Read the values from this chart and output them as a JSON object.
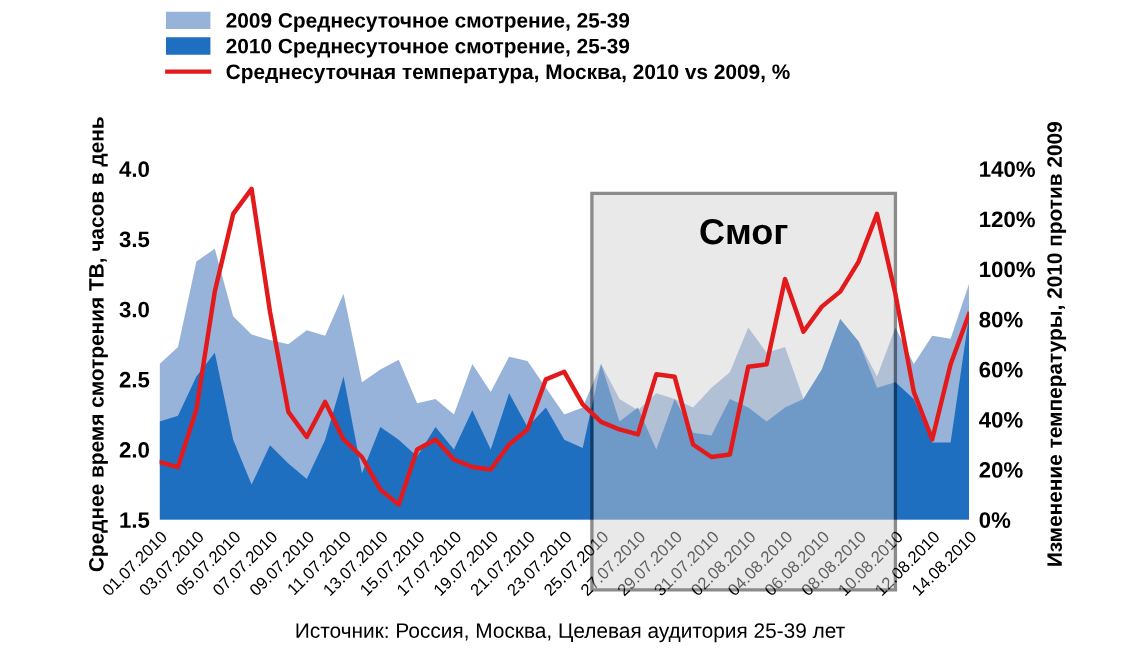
{
  "chart_data": {
    "type": "area",
    "ylabel": "Среднее время смотрения ТВ, часов в день",
    "y2label": "Изменение температуры, 2010 против 2009",
    "annotations": [
      "Источник: Россия, Москва, Целевая аудитория 25-39 лет"
    ],
    "x": [
      "2010-07-01",
      "2010-07-02",
      "2010-07-03",
      "2010-07-04",
      "2010-07-05",
      "2010-07-06",
      "2010-07-07",
      "2010-07-08",
      "2010-07-09",
      "2010-07-10",
      "2010-07-11",
      "2010-07-12",
      "2010-07-13",
      "2010-07-14",
      "2010-07-15",
      "2010-07-16",
      "2010-07-17",
      "2010-07-18",
      "2010-07-19",
      "2010-07-20",
      "2010-07-21",
      "2010-07-22",
      "2010-07-23",
      "2010-07-24",
      "2010-07-25",
      "2010-07-26",
      "2010-07-27",
      "2010-07-28",
      "2010-07-29",
      "2010-07-30",
      "2010-07-31",
      "2010-08-01",
      "2010-08-02",
      "2010-08-03",
      "2010-08-04",
      "2010-08-05",
      "2010-08-06",
      "2010-08-07",
      "2010-08-08",
      "2010-08-09",
      "2010-08-10",
      "2010-08-11",
      "2010-08-12",
      "2010-08-13",
      "2010-08-14"
    ],
    "series": [
      {
        "name": "2009 Среднесуточное смотрение, 25-39",
        "color": "#98b3d9",
        "values": [
          2.61,
          2.73,
          3.34,
          3.43,
          2.95,
          2.82,
          2.78,
          2.75,
          2.85,
          2.81,
          3.11,
          2.48,
          2.57,
          2.64,
          2.33,
          2.36,
          2.25,
          2.61,
          2.41,
          2.66,
          2.63,
          2.44,
          2.25,
          2.3,
          2.61,
          2.36,
          2.28,
          2.4,
          2.36,
          2.3,
          2.44,
          2.55,
          2.87,
          2.69,
          2.73,
          2.36,
          2.57,
          2.93,
          2.77,
          2.52,
          2.87,
          2.61,
          2.81,
          2.79,
          3.18
        ]
      },
      {
        "name": "2010 Среднесуточное смотрение, 25-39",
        "color": "#1f6fc0",
        "values": [
          2.2,
          2.24,
          2.52,
          2.69,
          2.07,
          1.75,
          2.03,
          1.9,
          1.79,
          2.07,
          2.52,
          1.83,
          2.16,
          2.07,
          1.95,
          2.16,
          2.0,
          2.28,
          2.0,
          2.4,
          2.16,
          2.3,
          2.07,
          2.01,
          2.61,
          2.2,
          2.3,
          2.0,
          2.36,
          2.12,
          2.1,
          2.36,
          2.3,
          2.2,
          2.3,
          2.36,
          2.57,
          2.93,
          2.77,
          2.44,
          2.48,
          2.36,
          2.05,
          2.05,
          2.95
        ]
      },
      {
        "name": "Среднесуточная температура, Москва, 2010 vs 2009, %",
        "type": "line",
        "axis": "y2",
        "color": "#e31a1c",
        "values": [
          23,
          21,
          44,
          91,
          122,
          132,
          83,
          43,
          33,
          47,
          32,
          25,
          12,
          6,
          28,
          32,
          24,
          21,
          20,
          30,
          36,
          56,
          59,
          46,
          39,
          36,
          34,
          58,
          57,
          30,
          25,
          26,
          61,
          62,
          96,
          75,
          85,
          91,
          103,
          122,
          90,
          51,
          32,
          62,
          82
        ]
      }
    ],
    "xlim": [
      "2010-07-01",
      "2010-08-14"
    ],
    "xticks": [
      {
        "value": "2010-07-01",
        "label": "01.07.2010"
      },
      {
        "value": "2010-07-03",
        "label": "03.07.2010"
      },
      {
        "value": "2010-07-05",
        "label": "05.07.2010"
      },
      {
        "value": "2010-07-07",
        "label": "07.07.2010"
      },
      {
        "value": "2010-07-09",
        "label": "09.07.2010"
      },
      {
        "value": "2010-07-11",
        "label": "11.07.2010"
      },
      {
        "value": "2010-07-13",
        "label": "13.07.2010"
      },
      {
        "value": "2010-07-15",
        "label": "15.07.2010"
      },
      {
        "value": "2010-07-17",
        "label": "17.07.2010"
      },
      {
        "value": "2010-07-19",
        "label": "19.07.2010"
      },
      {
        "value": "2010-07-21",
        "label": "21.07.2010"
      },
      {
        "value": "2010-07-23",
        "label": "23.07.2010"
      },
      {
        "value": "2010-07-25",
        "label": "25.07.2010"
      },
      {
        "value": "2010-07-27",
        "label": "27.07.2010"
      },
      {
        "value": "2010-07-29",
        "label": "29.07.2010"
      },
      {
        "value": "2010-07-31",
        "label": "31.07.2010"
      },
      {
        "value": "2010-08-02",
        "label": "02.08.2010"
      },
      {
        "value": "2010-08-04",
        "label": "04.08.2010"
      },
      {
        "value": "2010-08-06",
        "label": "06.08.2010"
      },
      {
        "value": "2010-08-08",
        "label": "08.08.2010"
      },
      {
        "value": "2010-08-10",
        "label": "10.08.2010"
      },
      {
        "value": "2010-08-12",
        "label": "12.08.2010"
      },
      {
        "value": "2010-08-14",
        "label": "14.08.2010"
      }
    ],
    "ylim": [
      1.5,
      4.0
    ],
    "yticks": [
      1.5,
      {
        "value": 2.0,
        "label": "2.0"
      },
      2.5,
      {
        "value": 3.0,
        "label": "3.0"
      },
      3.5,
      {
        "value": 4.0,
        "label": "4.0"
      }
    ],
    "y2lim": [
      0,
      140
    ],
    "y2ticks": [
      {
        "value": 0,
        "label": "0%"
      },
      {
        "value": 20,
        "label": "20%"
      },
      {
        "value": 40,
        "label": "40%"
      },
      {
        "value": 60,
        "label": "60%"
      },
      {
        "value": 80,
        "label": "80%"
      },
      {
        "value": 100,
        "label": "100%"
      },
      {
        "value": 120,
        "label": "120%"
      },
      {
        "value": 140,
        "label": "140%"
      }
    ],
    "bands": [
      {
        "axis": "x",
        "from": "2010-07-24T12:00",
        "to": "2010-08-10T00:00",
        "label": "Смог",
        "color": "#d0d0d0"
      }
    ],
    "grid": false,
    "legend": "top"
  }
}
